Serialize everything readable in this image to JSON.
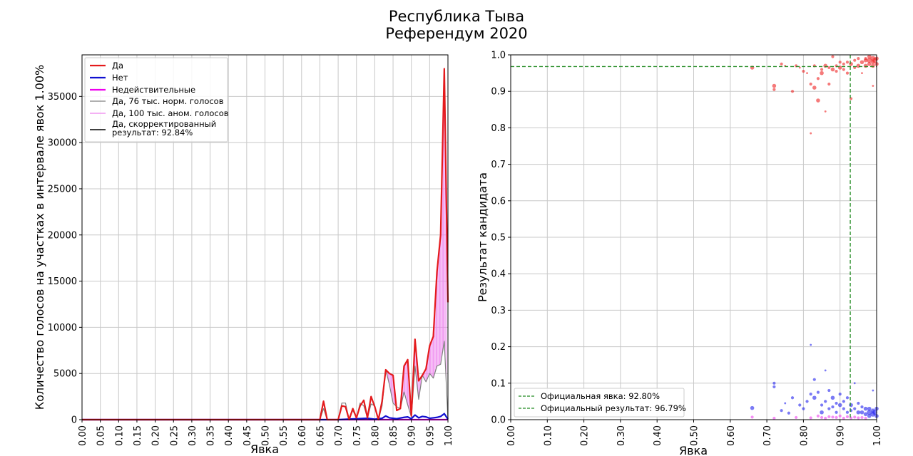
{
  "title": "Республика Тыва",
  "subtitle": "Референдум 2020",
  "chart_data": [
    {
      "type": "line",
      "xlabel": "Явка",
      "ylabel": "Количество голосов на участках в интервале явок 1.00%",
      "xlim": [
        0,
        1
      ],
      "ylim": [
        0,
        39500
      ],
      "xticks": [
        "0.00",
        "0.05",
        "0.10",
        "0.15",
        "0.20",
        "0.25",
        "0.30",
        "0.35",
        "0.40",
        "0.45",
        "0.50",
        "0.55",
        "0.60",
        "0.65",
        "0.70",
        "0.75",
        "0.80",
        "0.85",
        "0.90",
        "0.95",
        "1.00"
      ],
      "yticks": [
        "0",
        "5000",
        "10000",
        "15000",
        "20000",
        "25000",
        "30000",
        "35000"
      ],
      "yticks_values": [
        0,
        5000,
        10000,
        15000,
        20000,
        25000,
        30000,
        35000
      ],
      "grid": true,
      "legend_position": "top-left",
      "legend": [
        {
          "label": "Да",
          "color": "#e41a1c"
        },
        {
          "label": "Нет",
          "color": "#1010d0"
        },
        {
          "label": "Недействительные",
          "color": "#ee00ee"
        },
        {
          "label": "Да, 76 тыс. норм. голосов",
          "color": "#808080"
        },
        {
          "label": "Да, 100 тыс. аном. голосов",
          "color": "#ee82ee"
        },
        {
          "label": "Да, скорректированный результат: 92.84%",
          "color": "#000000"
        }
      ],
      "series": [
        {
          "name": "Да",
          "color": "#e41a1c",
          "x": [
            0.0,
            0.64,
            0.65,
            0.66,
            0.67,
            0.7,
            0.71,
            0.72,
            0.73,
            0.74,
            0.75,
            0.76,
            0.77,
            0.78,
            0.79,
            0.8,
            0.81,
            0.82,
            0.83,
            0.84,
            0.85,
            0.86,
            0.87,
            0.88,
            0.89,
            0.9,
            0.91,
            0.92,
            0.93,
            0.94,
            0.95,
            0.96,
            0.97,
            0.98,
            0.99,
            1.0
          ],
          "y": [
            0,
            0,
            0,
            2000,
            0,
            0,
            1500,
            1400,
            0,
            1200,
            200,
            1500,
            2100,
            200,
            2500,
            1400,
            0,
            2000,
            5400,
            5000,
            4800,
            1000,
            1200,
            5800,
            6500,
            400,
            8700,
            4200,
            4800,
            5500,
            8000,
            9000,
            16000,
            20000,
            38000,
            12700
          ]
        },
        {
          "name": "Нет",
          "color": "#1010d0",
          "x": [
            0.0,
            0.7,
            0.74,
            0.78,
            0.8,
            0.82,
            0.83,
            0.84,
            0.86,
            0.88,
            0.89,
            0.9,
            0.91,
            0.92,
            0.93,
            0.94,
            0.95,
            0.96,
            0.97,
            0.98,
            0.99,
            1.0
          ],
          "y": [
            0,
            0,
            80,
            150,
            50,
            150,
            400,
            200,
            100,
            250,
            300,
            100,
            500,
            200,
            350,
            300,
            150,
            200,
            250,
            350,
            650,
            50
          ]
        },
        {
          "name": "Недействительные",
          "color": "#ee00ee",
          "x": [
            0.0,
            1.0
          ],
          "y": [
            0,
            0
          ]
        },
        {
          "name": "Да, 76 тыс. норм. голосов",
          "color": "#808080",
          "x": [
            0.0,
            0.64,
            0.65,
            0.66,
            0.67,
            0.7,
            0.71,
            0.72,
            0.73,
            0.74,
            0.75,
            0.76,
            0.77,
            0.78,
            0.79,
            0.8,
            0.81,
            0.82,
            0.83,
            0.84,
            0.85,
            0.86,
            0.87,
            0.88,
            0.89,
            0.9,
            0.91,
            0.92,
            0.93,
            0.94,
            0.95,
            0.96,
            0.97,
            0.98,
            0.99,
            1.0
          ],
          "y": [
            0,
            0,
            0,
            1200,
            0,
            0,
            1800,
            1800,
            0,
            1000,
            200,
            1800,
            1500,
            200,
            1700,
            1500,
            0,
            1500,
            5400,
            3800,
            1800,
            1400,
            1200,
            3000,
            1600,
            300,
            5800,
            2200,
            4800,
            4100,
            5000,
            4500,
            5800,
            6000,
            8500,
            0
          ]
        },
        {
          "name": "Да, 100 тыс. аном. голосов",
          "color": "#ee82ee",
          "hatch_from": 0.83
        }
      ]
    },
    {
      "type": "scatter",
      "xlabel": "Явка",
      "ylabel": "Результат кандидата",
      "xlim": [
        0,
        1
      ],
      "ylim": [
        0,
        1
      ],
      "xticks": [
        "0.00",
        "0.10",
        "0.20",
        "0.30",
        "0.40",
        "0.50",
        "0.60",
        "0.70",
        "0.80",
        "0.90",
        "1.00"
      ],
      "yticks": [
        "0.0",
        "0.1",
        "0.2",
        "0.3",
        "0.4",
        "0.5",
        "0.6",
        "0.7",
        "0.8",
        "0.9",
        "1.0"
      ],
      "grid": true,
      "legend_position": "bottom-left",
      "official_turnout": 0.928,
      "official_result": 0.9679,
      "legend": [
        {
          "label": "Официальная явка: 92.80%",
          "color": "#228b22"
        },
        {
          "label": "Официальный результат: 96.79%",
          "color": "#228b22"
        }
      ],
      "series": [
        {
          "name": "Да",
          "color": "#ee2222",
          "points": [
            [
              0.66,
              0.965,
              4
            ],
            [
              0.72,
              0.915,
              4
            ],
            [
              0.72,
              0.905,
              3
            ],
            [
              0.74,
              0.975,
              3
            ],
            [
              0.75,
              0.97,
              2
            ],
            [
              0.77,
              0.9,
              3
            ],
            [
              0.78,
              0.97,
              3
            ],
            [
              0.79,
              0.965,
              2
            ],
            [
              0.8,
              0.955,
              3
            ],
            [
              0.81,
              0.95,
              2
            ],
            [
              0.82,
              0.785,
              2
            ],
            [
              0.82,
              0.92,
              3
            ],
            [
              0.83,
              0.97,
              3
            ],
            [
              0.83,
              0.91,
              4
            ],
            [
              0.84,
              0.875,
              4
            ],
            [
              0.84,
              0.935,
              3
            ],
            [
              0.85,
              0.95,
              4
            ],
            [
              0.85,
              0.96,
              3
            ],
            [
              0.86,
              0.97,
              4
            ],
            [
              0.86,
              0.845,
              2
            ],
            [
              0.87,
              0.92,
              3
            ],
            [
              0.87,
              0.965,
              3
            ],
            [
              0.88,
              0.995,
              3
            ],
            [
              0.88,
              0.96,
              4
            ],
            [
              0.89,
              0.955,
              3
            ],
            [
              0.89,
              0.97,
              3
            ],
            [
              0.9,
              0.965,
              4
            ],
            [
              0.9,
              0.98,
              3
            ],
            [
              0.91,
              0.96,
              3
            ],
            [
              0.91,
              0.975,
              3
            ],
            [
              0.92,
              0.95,
              3
            ],
            [
              0.92,
              0.98,
              3
            ],
            [
              0.93,
              0.975,
              4
            ],
            [
              0.93,
              0.88,
              3
            ],
            [
              0.94,
              0.985,
              3
            ],
            [
              0.94,
              0.965,
              3
            ],
            [
              0.95,
              0.97,
              4
            ],
            [
              0.95,
              0.99,
              3
            ],
            [
              0.96,
              0.98,
              4
            ],
            [
              0.96,
              0.95,
              2
            ],
            [
              0.97,
              0.985,
              4
            ],
            [
              0.97,
              0.97,
              4
            ],
            [
              0.97,
              0.99,
              3
            ],
            [
              0.98,
              0.985,
              5
            ],
            [
              0.98,
              0.975,
              4
            ],
            [
              0.98,
              0.995,
              4
            ],
            [
              0.99,
              0.98,
              4
            ],
            [
              0.99,
              0.99,
              5
            ],
            [
              0.99,
              0.97,
              4
            ],
            [
              0.99,
              0.915,
              2
            ],
            [
              0.995,
              0.985,
              5
            ],
            [
              1.0,
              0.99,
              4
            ],
            [
              1.0,
              0.975,
              4
            ]
          ]
        },
        {
          "name": "Нет",
          "color": "#2222ee",
          "points": [
            [
              0.66,
              0.032,
              4
            ],
            [
              0.72,
              0.1,
              3
            ],
            [
              0.72,
              0.09,
              3
            ],
            [
              0.74,
              0.025,
              3
            ],
            [
              0.75,
              0.045,
              2
            ],
            [
              0.76,
              0.018,
              3
            ],
            [
              0.77,
              0.06,
              3
            ],
            [
              0.79,
              0.04,
              3
            ],
            [
              0.8,
              0.03,
              3
            ],
            [
              0.81,
              0.05,
              3
            ],
            [
              0.82,
              0.205,
              2
            ],
            [
              0.82,
              0.07,
              3
            ],
            [
              0.83,
              0.11,
              3
            ],
            [
              0.83,
              0.06,
              4
            ],
            [
              0.84,
              0.075,
              3
            ],
            [
              0.85,
              0.04,
              3
            ],
            [
              0.85,
              0.02,
              4
            ],
            [
              0.86,
              0.135,
              2
            ],
            [
              0.86,
              0.05,
              3
            ],
            [
              0.87,
              0.03,
              3
            ],
            [
              0.87,
              0.08,
              3
            ],
            [
              0.88,
              0.06,
              4
            ],
            [
              0.88,
              0.035,
              3
            ],
            [
              0.89,
              0.045,
              3
            ],
            [
              0.89,
              0.02,
              3
            ],
            [
              0.9,
              0.04,
              4
            ],
            [
              0.9,
              0.07,
              3
            ],
            [
              0.91,
              0.03,
              3
            ],
            [
              0.91,
              0.05,
              3
            ],
            [
              0.92,
              0.06,
              3
            ],
            [
              0.92,
              0.02,
              3
            ],
            [
              0.93,
              0.04,
              4
            ],
            [
              0.93,
              0.025,
              3
            ],
            [
              0.94,
              0.03,
              3
            ],
            [
              0.94,
              0.1,
              2
            ],
            [
              0.95,
              0.02,
              4
            ],
            [
              0.95,
              0.045,
              3
            ],
            [
              0.96,
              0.02,
              4
            ],
            [
              0.96,
              0.035,
              3
            ],
            [
              0.97,
              0.015,
              4
            ],
            [
              0.97,
              0.03,
              4
            ],
            [
              0.98,
              0.02,
              5
            ],
            [
              0.98,
              0.01,
              4
            ],
            [
              0.98,
              0.03,
              4
            ],
            [
              0.99,
              0.015,
              5
            ],
            [
              0.99,
              0.025,
              4
            ],
            [
              0.99,
              0.08,
              2
            ],
            [
              0.995,
              0.02,
              5
            ],
            [
              1.0,
              0.01,
              4
            ],
            [
              1.0,
              0.03,
              4
            ]
          ]
        },
        {
          "name": "Недействительные",
          "color": "#ee44ee",
          "points": [
            [
              0.66,
              0.007,
              3
            ],
            [
              0.72,
              0.004,
              3
            ],
            [
              0.78,
              0.006,
              3
            ],
            [
              0.82,
              0.005,
              3
            ],
            [
              0.84,
              0.01,
              3
            ],
            [
              0.85,
              0.006,
              3
            ],
            [
              0.86,
              0.004,
              3
            ],
            [
              0.87,
              0.008,
              3
            ],
            [
              0.88,
              0.007,
              3
            ],
            [
              0.89,
              0.006,
              3
            ],
            [
              0.9,
              0.01,
              3
            ],
            [
              0.91,
              0.004,
              3
            ],
            [
              0.92,
              0.008,
              3
            ],
            [
              0.93,
              0.005,
              3
            ],
            [
              0.94,
              0.007,
              3
            ],
            [
              0.95,
              0.005,
              3
            ],
            [
              0.96,
              0.006,
              3
            ],
            [
              0.97,
              0.004,
              3
            ]
          ]
        }
      ]
    }
  ]
}
